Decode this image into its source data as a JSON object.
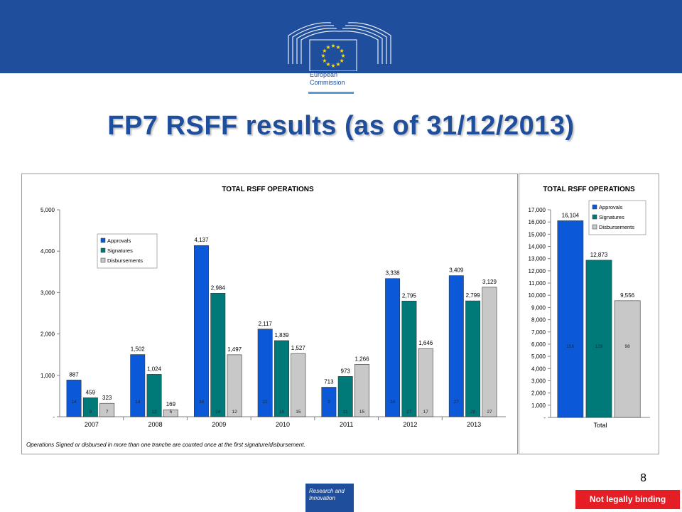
{
  "colors": {
    "header_band": "#1f4e9c",
    "approvals": "#0b59d8",
    "signatures": "#007a78",
    "disbursements": "#c8c8c8",
    "disclaimer_bg": "#e51e25"
  },
  "logo": {
    "line1": "European",
    "line2": "Commission"
  },
  "page_title": "FP7 RSFF results (as of 31/12/2013)",
  "page_number": "8",
  "footer": {
    "research_label": "Research and\nInnovation",
    "disclaimer": "Not legally binding"
  },
  "chart_data": [
    {
      "type": "bar",
      "title": "TOTAL RSFF OPERATIONS",
      "categories": [
        "2007",
        "2008",
        "2009",
        "2010",
        "2011",
        "2012",
        "2013"
      ],
      "series": [
        {
          "name": "Approvals",
          "values": [
            887,
            1502,
            4137,
            2117,
            713,
            3338,
            3409
          ],
          "value_labels": [
            "887",
            "1,502",
            "4,137",
            "2,117",
            "713",
            "3,338",
            "3,409"
          ],
          "count_labels": [
            "14",
            "14",
            "36",
            "22",
            "9",
            "34",
            "27"
          ]
        },
        {
          "name": "Signatures",
          "values": [
            459,
            1024,
            2984,
            1839,
            973,
            2795,
            2799
          ],
          "value_labels": [
            "459",
            "1,024",
            "2,984",
            "1,839",
            "973",
            "2,795",
            "2,799"
          ],
          "count_labels": [
            "9",
            "12",
            "24",
            "18",
            "11",
            "27",
            "28"
          ]
        },
        {
          "name": "Disbursements",
          "values": [
            323,
            169,
            1497,
            1527,
            1266,
            1646,
            3129
          ],
          "value_labels": [
            "323",
            "169",
            "1,497",
            "1,527",
            "1,266",
            "1,646",
            "3,129"
          ],
          "count_labels": [
            "7",
            "5",
            "12",
            "15",
            "15",
            "17",
            "27"
          ]
        }
      ],
      "ylim": [
        0,
        5000
      ],
      "yticks": [
        0,
        1000,
        2000,
        3000,
        4000,
        5000
      ],
      "ytick_labels": [
        "-",
        "1,000",
        "2,000",
        "3,000",
        "4,000",
        "5,000"
      ],
      "legend": "upper-left",
      "note": "Operations Signed or disbursed in more than one tranche are counted once at the first signature/disbursement."
    },
    {
      "type": "bar",
      "title": "TOTAL RSFF OPERATIONS",
      "categories": [
        "Total"
      ],
      "series": [
        {
          "name": "Approvals",
          "values": [
            16104
          ],
          "value_labels": [
            "16,104"
          ],
          "count_labels": [
            "156"
          ]
        },
        {
          "name": "Signatures",
          "values": [
            12873
          ],
          "value_labels": [
            "12,873"
          ],
          "count_labels": [
            "129"
          ]
        },
        {
          "name": "Disbursements",
          "values": [
            9556
          ],
          "value_labels": [
            "9,556"
          ],
          "count_labels": [
            "98"
          ]
        }
      ],
      "ylim": [
        0,
        17000
      ],
      "yticks": [
        0,
        1000,
        2000,
        3000,
        4000,
        5000,
        6000,
        7000,
        8000,
        9000,
        10000,
        11000,
        12000,
        13000,
        14000,
        15000,
        16000,
        17000
      ],
      "ytick_labels": [
        "-",
        "1,000",
        "2,000",
        "3,000",
        "4,000",
        "5,000",
        "6,000",
        "7,000",
        "8,000",
        "9,000",
        "10,000",
        "11,000",
        "12,000",
        "13,000",
        "14,000",
        "15,000",
        "16,000",
        "17,000"
      ],
      "legend": "upper-right"
    }
  ]
}
